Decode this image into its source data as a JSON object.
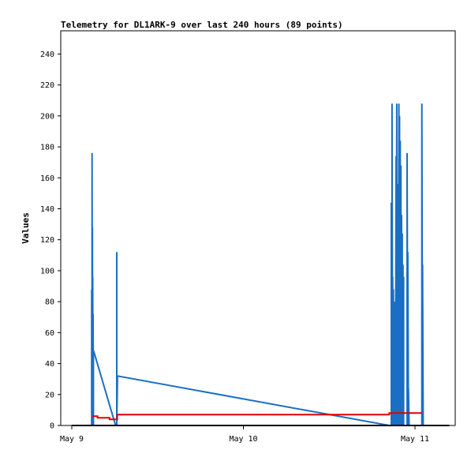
{
  "chart_data": {
    "type": "line",
    "title": "Telemetry for DL1ARK-9 over last 240 hours (89 points)",
    "xlabel": "",
    "ylabel": "Values",
    "ylim": [
      0,
      255
    ],
    "xlim": [
      0,
      2.2
    ],
    "yticks": [
      0,
      20,
      40,
      60,
      80,
      100,
      120,
      140,
      160,
      180,
      200,
      220,
      240
    ],
    "xticks": [
      {
        "value": 0,
        "label": "May 9"
      },
      {
        "value": 1,
        "label": "May 10"
      },
      {
        "value": 2,
        "label": "May 11"
      }
    ],
    "grid": false,
    "legend": "none",
    "series": [
      {
        "color": "#1a6fc4",
        "x": [
          0.116,
          0.116,
          0.118,
          0.118,
          0.12,
          0.12,
          0.122,
          0.122,
          0.124,
          0.124,
          0.126,
          0.126,
          0.128,
          0.255,
          0.262,
          0.262,
          0.262,
          0.266,
          1.85,
          1.862,
          1.862,
          1.866,
          1.866,
          1.87,
          1.87,
          1.874,
          1.874,
          1.878,
          1.878,
          1.882,
          1.882,
          1.886,
          1.886,
          1.89,
          1.89,
          1.894,
          1.894,
          1.898,
          1.898,
          1.902,
          1.902,
          1.906,
          1.906,
          1.91,
          1.91,
          1.914,
          1.914,
          1.918,
          1.918,
          1.922,
          1.922,
          1.926,
          1.926,
          1.93,
          1.93,
          1.934,
          1.934,
          1.938,
          1.938,
          1.942,
          1.942,
          1.946,
          1.946,
          1.95,
          1.95,
          1.954,
          1.954,
          1.958,
          1.958,
          1.962,
          1.962,
          1.966,
          1.966,
          1.97,
          1.97,
          1.974,
          1.974,
          1.978,
          1.978,
          1.982,
          1.982,
          1.986,
          1.986,
          2.04,
          2.04,
          2.044,
          2.044,
          2.048,
          2.048
        ],
        "values": [
          0,
          88,
          0,
          176,
          0,
          128,
          0,
          96,
          0,
          72,
          0,
          48,
          48,
          0,
          0,
          112,
          0,
          32,
          0,
          0,
          144,
          0,
          208,
          0,
          96,
          0,
          88,
          0,
          0,
          80,
          0,
          0,
          0,
          174,
          0,
          208,
          0,
          24,
          0,
          156,
          0,
          208,
          0,
          200,
          0,
          184,
          0,
          168,
          0,
          136,
          0,
          124,
          0,
          104,
          0,
          96,
          0,
          0,
          0,
          0,
          0,
          0,
          0,
          0,
          0,
          0,
          176,
          0,
          112,
          0,
          24,
          0,
          0,
          0,
          0,
          0,
          0,
          0,
          0,
          0,
          0,
          0,
          0,
          0,
          208,
          0,
          104,
          0,
          0
        ]
      },
      {
        "color": "#e00000",
        "x": [
          0.118,
          0.15,
          0.15,
          0.22,
          0.22,
          0.265,
          0.265,
          1.85,
          1.85,
          2.04
        ],
        "values": [
          6,
          6,
          5,
          5,
          4,
          4,
          7,
          7,
          8,
          8
        ]
      },
      {
        "color": "#000000",
        "x": [
          0.0,
          2.2
        ],
        "values": [
          0,
          0
        ]
      }
    ]
  }
}
